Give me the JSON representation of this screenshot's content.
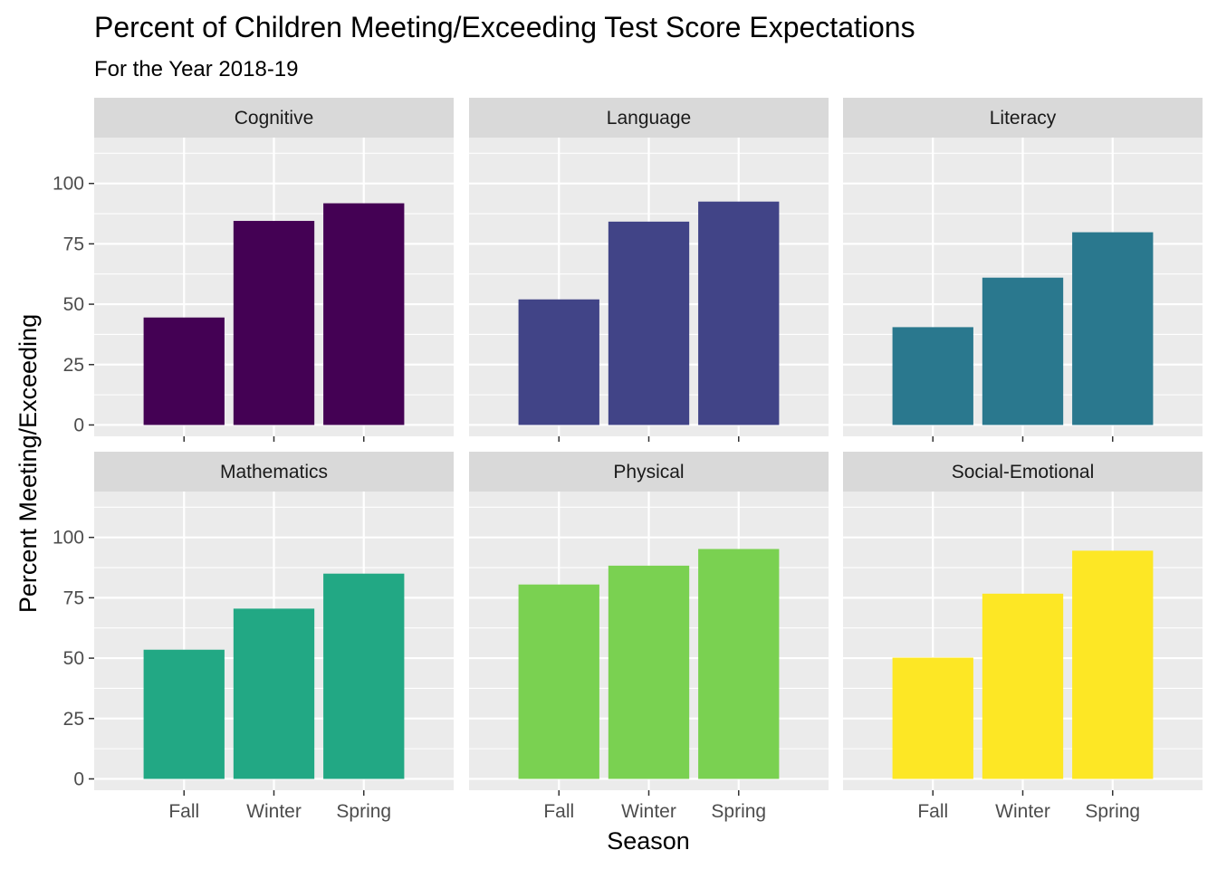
{
  "chart_data": {
    "type": "bar",
    "title": "Percent of Children Meeting/Exceeding Test Score Expectations",
    "subtitle": "For the Year 2018-19",
    "xlabel": "Season",
    "ylabel": "Percent Meeting/Exceeding",
    "categories": [
      "Fall",
      "Winter",
      "Spring"
    ],
    "yticks": [
      0,
      25,
      50,
      75,
      100
    ],
    "ylim": [
      -4.7,
      119
    ],
    "grid": true,
    "layout": "facet_wrap 2 rows x 3 columns",
    "panels": [
      {
        "name": "Cognitive",
        "color": "#440154",
        "values": [
          44.5,
          84.5,
          91.8
        ]
      },
      {
        "name": "Language",
        "color": "#414487",
        "values": [
          52.0,
          84.2,
          92.5
        ]
      },
      {
        "name": "Literacy",
        "color": "#2A788E",
        "values": [
          40.5,
          61.0,
          79.8
        ]
      },
      {
        "name": "Mathematics",
        "color": "#22A884",
        "values": [
          53.5,
          70.5,
          85.0
        ]
      },
      {
        "name": "Physical",
        "color": "#7AD151",
        "values": [
          80.5,
          88.3,
          95.2
        ]
      },
      {
        "name": "Social-Emotional",
        "color": "#FDE725",
        "values": [
          50.2,
          76.7,
          94.5
        ]
      }
    ]
  }
}
